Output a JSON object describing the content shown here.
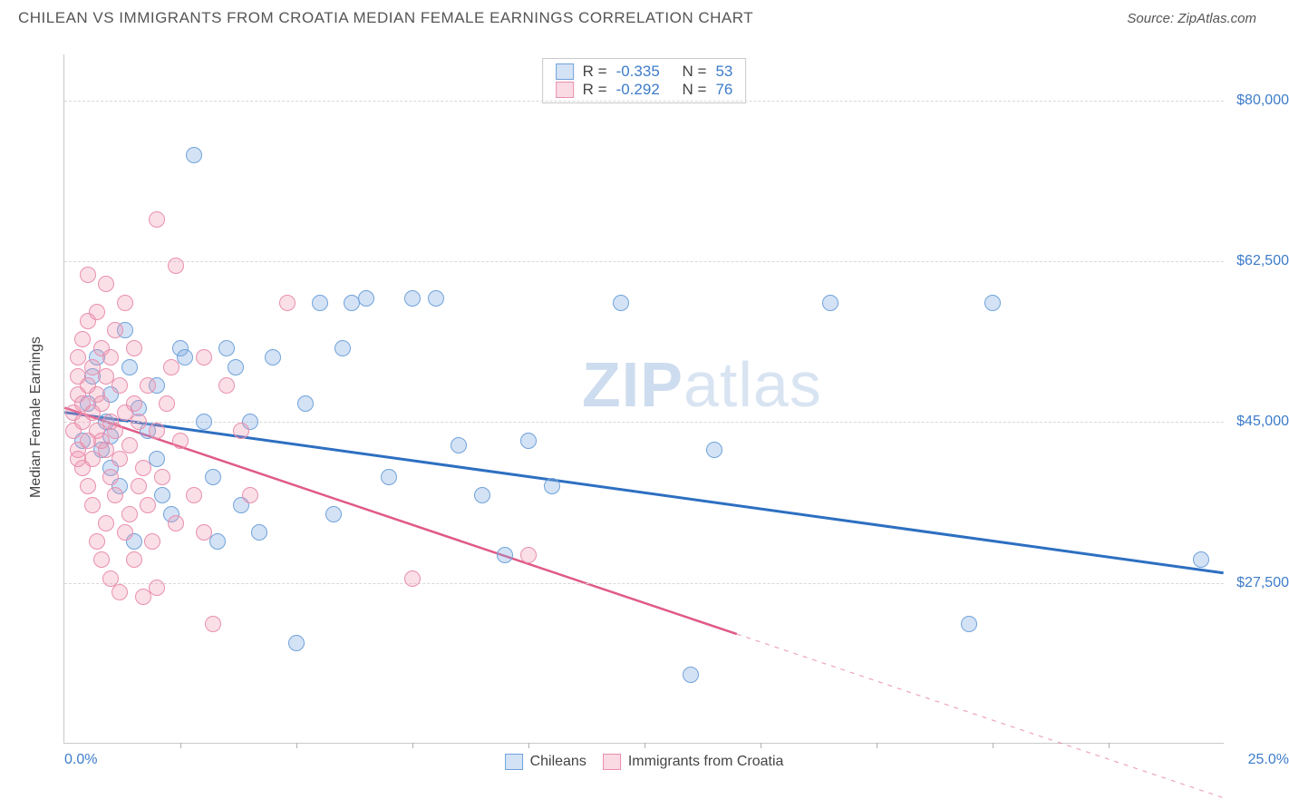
{
  "header": {
    "title": "CHILEAN VS IMMIGRANTS FROM CROATIA MEDIAN FEMALE EARNINGS CORRELATION CHART",
    "source_prefix": "Source: ",
    "source_name": "ZipAtlas.com"
  },
  "watermark": {
    "bold": "ZIP",
    "rest": "atlas"
  },
  "chart": {
    "type": "scatter",
    "background_color": "#ffffff",
    "grid_color": "#d8d8d8",
    "border_color": "#c9c9c9",
    "x": {
      "min": 0.0,
      "max": 25.0,
      "left_label": "0.0%",
      "right_label": "25.0%",
      "tick_positions_pct": [
        10,
        20,
        30,
        40,
        50,
        60,
        70,
        80,
        90
      ]
    },
    "y": {
      "min": 10000,
      "max": 85000,
      "title": "Median Female Earnings",
      "gridlines": [
        {
          "value": 27500,
          "label": "$27,500"
        },
        {
          "value": 45000,
          "label": "$45,000"
        },
        {
          "value": 62500,
          "label": "$62,500"
        },
        {
          "value": 80000,
          "label": "$80,000"
        }
      ],
      "label_color": "#3d7cc9"
    },
    "series": [
      {
        "name": "Chileans",
        "color_fill": "rgba(132,173,225,0.35)",
        "color_stroke": "#6fa3db",
        "marker_class": "blue",
        "marker_size_px": 18,
        "R": "-0.335",
        "N": "53",
        "trend": {
          "x1": 0.0,
          "y1": 46000,
          "x2": 25.0,
          "y2": 28500,
          "color": "#2d6fc1",
          "width": 3,
          "dash_after_x": null
        },
        "points": [
          [
            0.4,
            43000
          ],
          [
            0.5,
            47000
          ],
          [
            0.6,
            50000
          ],
          [
            0.7,
            52000
          ],
          [
            0.8,
            42000
          ],
          [
            0.9,
            45000
          ],
          [
            1.0,
            48000
          ],
          [
            1.0,
            40000
          ],
          [
            1.2,
            38000
          ],
          [
            1.3,
            55000
          ],
          [
            1.4,
            51000
          ],
          [
            1.5,
            32000
          ],
          [
            1.6,
            46500
          ],
          [
            1.8,
            44000
          ],
          [
            2.0,
            41000
          ],
          [
            2.0,
            49000
          ],
          [
            2.1,
            37000
          ],
          [
            2.3,
            35000
          ],
          [
            2.5,
            53000
          ],
          [
            2.6,
            52000
          ],
          [
            2.8,
            74000
          ],
          [
            3.0,
            45000
          ],
          [
            3.2,
            39000
          ],
          [
            3.3,
            32000
          ],
          [
            3.5,
            53000
          ],
          [
            3.7,
            51000
          ],
          [
            3.8,
            36000
          ],
          [
            4.0,
            45000
          ],
          [
            4.2,
            33000
          ],
          [
            4.5,
            52000
          ],
          [
            5.0,
            21000
          ],
          [
            5.2,
            47000
          ],
          [
            5.5,
            58000
          ],
          [
            5.8,
            35000
          ],
          [
            6.0,
            53000
          ],
          [
            6.2,
            58000
          ],
          [
            6.5,
            58500
          ],
          [
            7.0,
            39000
          ],
          [
            7.5,
            58500
          ],
          [
            8.0,
            58500
          ],
          [
            8.5,
            42500
          ],
          [
            9.0,
            37000
          ],
          [
            9.5,
            30500
          ],
          [
            10.0,
            43000
          ],
          [
            10.5,
            38000
          ],
          [
            12.0,
            58000
          ],
          [
            13.5,
            17500
          ],
          [
            14.0,
            42000
          ],
          [
            16.5,
            58000
          ],
          [
            19.5,
            23000
          ],
          [
            20.0,
            58000
          ],
          [
            24.5,
            30000
          ],
          [
            1.0,
            43500
          ]
        ]
      },
      {
        "name": "Immigrants from Croatia",
        "color_fill": "rgba(240,150,175,0.30)",
        "color_stroke": "#e98fae",
        "marker_class": "pink",
        "marker_size_px": 18,
        "R": "-0.292",
        "N": "76",
        "trend": {
          "x1": 0.0,
          "y1": 46500,
          "x2": 25.0,
          "y2": 4000,
          "color": "#e05a88",
          "width": 2.5,
          "dash_after_x": 14.5
        },
        "points": [
          [
            0.2,
            44000
          ],
          [
            0.2,
            46000
          ],
          [
            0.3,
            42000
          ],
          [
            0.3,
            48000
          ],
          [
            0.3,
            50000
          ],
          [
            0.3,
            52000
          ],
          [
            0.4,
            40000
          ],
          [
            0.4,
            45000
          ],
          [
            0.4,
            47000
          ],
          [
            0.4,
            54000
          ],
          [
            0.5,
            38000
          ],
          [
            0.5,
            43000
          ],
          [
            0.5,
            49000
          ],
          [
            0.5,
            56000
          ],
          [
            0.5,
            61000
          ],
          [
            0.6,
            36000
          ],
          [
            0.6,
            41000
          ],
          [
            0.6,
            46000
          ],
          [
            0.6,
            51000
          ],
          [
            0.7,
            32000
          ],
          [
            0.7,
            44000
          ],
          [
            0.7,
            48000
          ],
          [
            0.7,
            57000
          ],
          [
            0.8,
            30000
          ],
          [
            0.8,
            43000
          ],
          [
            0.8,
            47000
          ],
          [
            0.8,
            53000
          ],
          [
            0.9,
            34000
          ],
          [
            0.9,
            42000
          ],
          [
            0.9,
            50000
          ],
          [
            0.9,
            60000
          ],
          [
            1.0,
            28000
          ],
          [
            1.0,
            39000
          ],
          [
            1.0,
            45000
          ],
          [
            1.0,
            52000
          ],
          [
            1.1,
            37000
          ],
          [
            1.1,
            44000
          ],
          [
            1.1,
            55000
          ],
          [
            1.2,
            26500
          ],
          [
            1.2,
            41000
          ],
          [
            1.2,
            49000
          ],
          [
            1.3,
            33000
          ],
          [
            1.3,
            46000
          ],
          [
            1.3,
            58000
          ],
          [
            1.4,
            35000
          ],
          [
            1.4,
            42500
          ],
          [
            1.5,
            30000
          ],
          [
            1.5,
            47000
          ],
          [
            1.5,
            53000
          ],
          [
            1.6,
            38000
          ],
          [
            1.6,
            45000
          ],
          [
            1.7,
            26000
          ],
          [
            1.7,
            40000
          ],
          [
            1.8,
            36000
          ],
          [
            1.8,
            49000
          ],
          [
            1.9,
            32000
          ],
          [
            2.0,
            27000
          ],
          [
            2.0,
            44000
          ],
          [
            2.0,
            67000
          ],
          [
            2.1,
            39000
          ],
          [
            2.2,
            47000
          ],
          [
            2.3,
            51000
          ],
          [
            2.4,
            34000
          ],
          [
            2.4,
            62000
          ],
          [
            2.5,
            43000
          ],
          [
            2.8,
            37000
          ],
          [
            3.0,
            52000
          ],
          [
            3.0,
            33000
          ],
          [
            3.2,
            23000
          ],
          [
            3.5,
            49000
          ],
          [
            3.8,
            44000
          ],
          [
            4.0,
            37000
          ],
          [
            4.8,
            58000
          ],
          [
            7.5,
            28000
          ],
          [
            10.0,
            30500
          ],
          [
            0.3,
            41000
          ]
        ]
      }
    ],
    "legend_top": {
      "R_label": "R =",
      "N_label": "N ="
    },
    "legend_bottom": {
      "series1": "Chileans",
      "series2": "Immigrants from Croatia"
    }
  }
}
